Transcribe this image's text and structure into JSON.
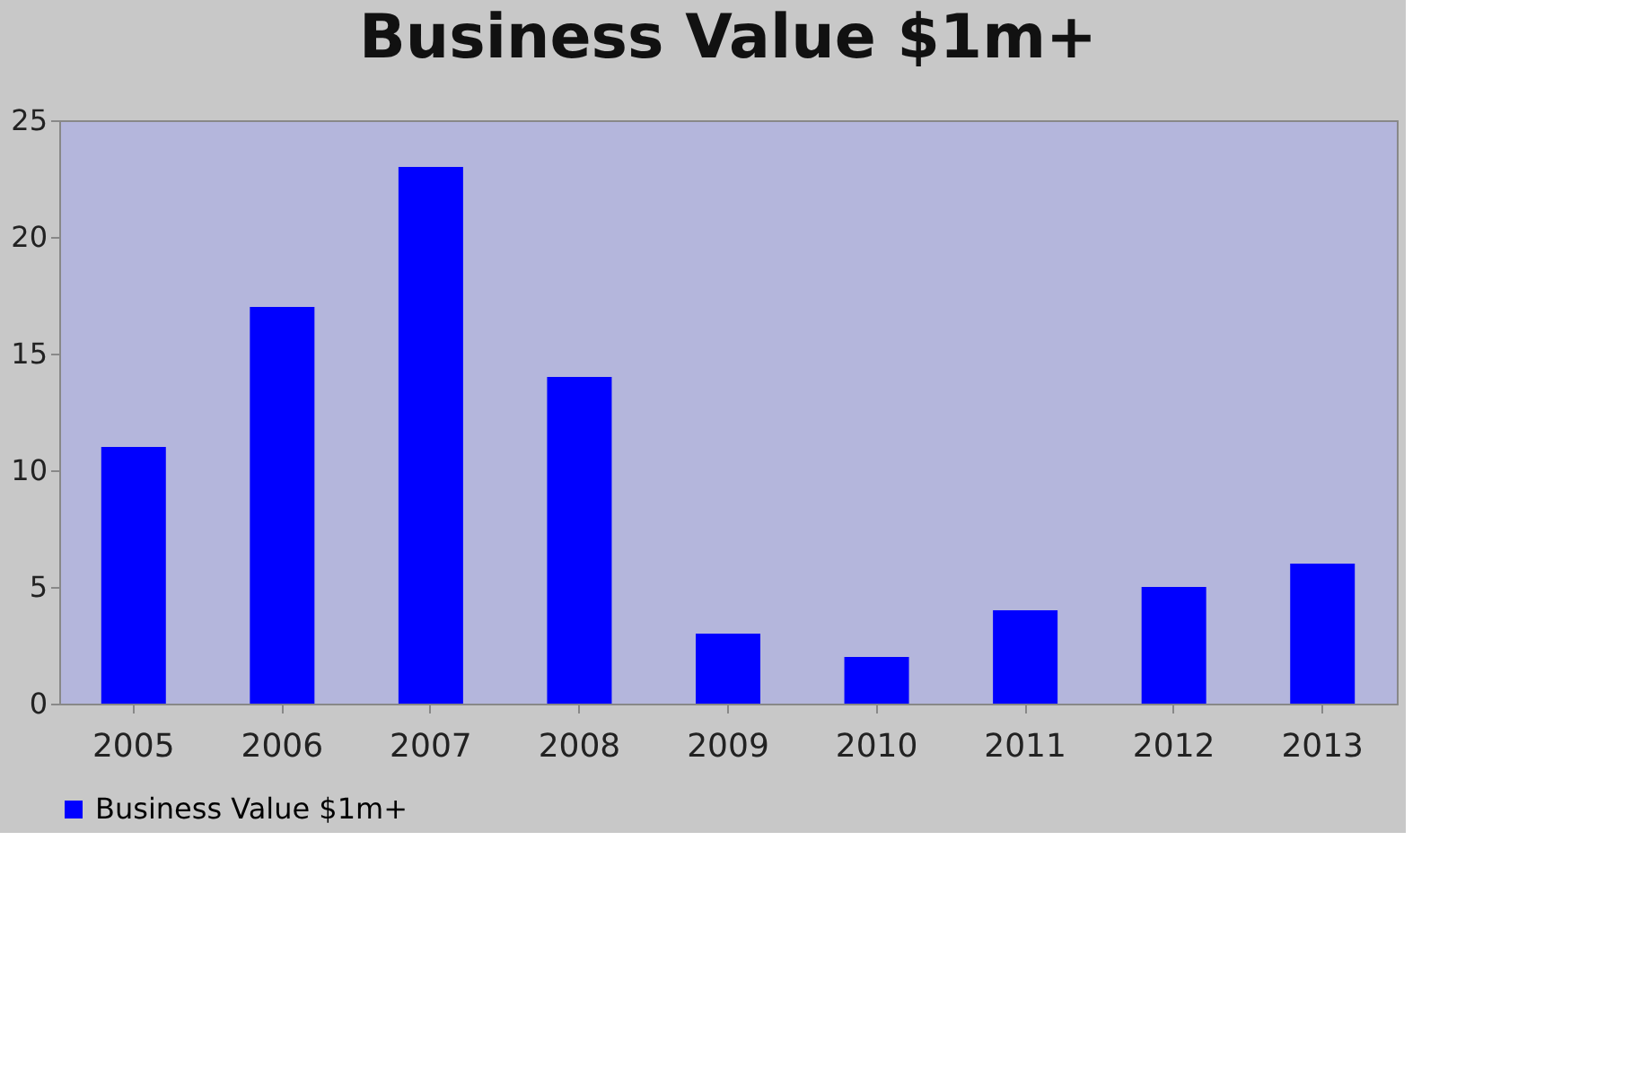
{
  "chart_data": {
    "type": "bar",
    "title": "Business Value $1m+",
    "categories": [
      "2005",
      "2006",
      "2007",
      "2008",
      "2009",
      "2010",
      "2011",
      "2012",
      "2013"
    ],
    "series": [
      {
        "name": "Business Value $1m+",
        "color": "#0000ff",
        "values": [
          11,
          17,
          23,
          14,
          3,
          2,
          4,
          5,
          6
        ]
      }
    ],
    "ylim": [
      0,
      25
    ],
    "yticks": [
      0,
      5,
      10,
      15,
      20,
      25
    ],
    "grid": false,
    "legend": "bottom"
  }
}
